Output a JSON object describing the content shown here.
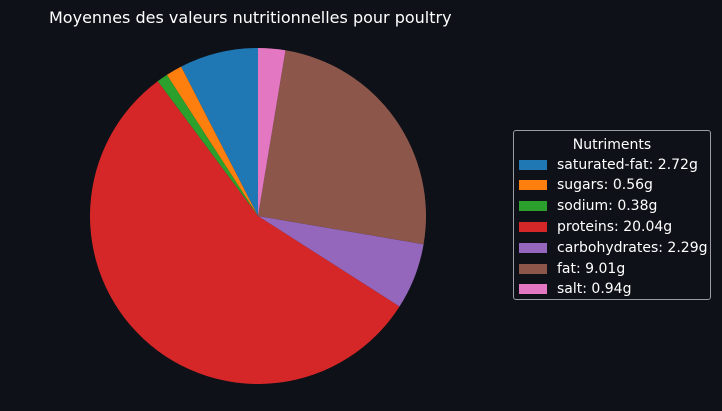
{
  "chart_data": {
    "type": "pie",
    "title": "Moyennes des valeurs nutritionnelles pour poultry",
    "legend_title": "Nutriments",
    "legend_placement": "right",
    "slices": [
      {
        "label": "saturated-fat: 2.72g",
        "name": "saturated-fat",
        "value": 2.72,
        "color": "#1f77b4"
      },
      {
        "label": "sugars: 0.56g",
        "name": "sugars",
        "value": 0.56,
        "color": "#ff7f0e"
      },
      {
        "label": "sodium: 0.38g",
        "name": "sodium",
        "value": 0.38,
        "color": "#2ca02c"
      },
      {
        "label": "proteins: 20.04g",
        "name": "proteins",
        "value": 20.04,
        "color": "#d62728"
      },
      {
        "label": "carbohydrates: 2.29g",
        "name": "carbohydrates",
        "value": 2.29,
        "color": "#9467bd"
      },
      {
        "label": "fat: 9.01g",
        "name": "fat",
        "value": 9.01,
        "color": "#8c564b"
      },
      {
        "label": "salt: 0.94g",
        "name": "salt",
        "value": 0.94,
        "color": "#e377c2"
      }
    ]
  }
}
